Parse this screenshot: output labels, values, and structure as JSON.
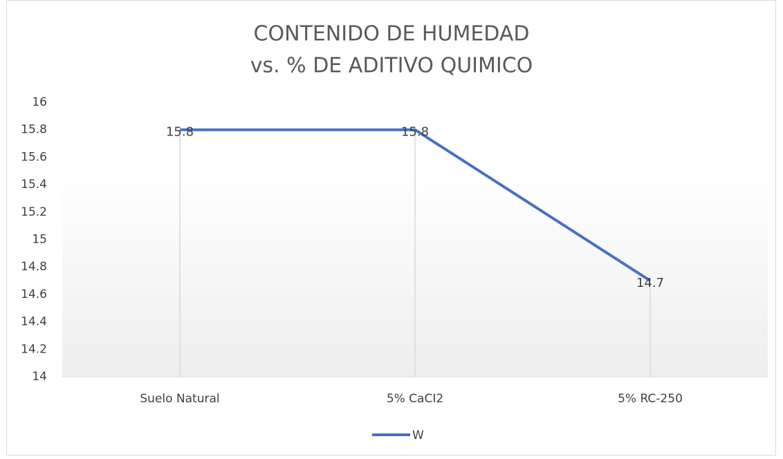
{
  "chart_data": {
    "type": "line",
    "title": [
      "CONTENIDO DE HUMEDAD",
      "vs. % DE ADITIVO QUIMICO"
    ],
    "categories": [
      "Suelo Natural",
      "5% CaCI2",
      "5% RC-250"
    ],
    "series": [
      {
        "name": "W",
        "color": "#4472c4",
        "values": [
          15.8,
          15.8,
          14.7
        ]
      }
    ],
    "ylim": [
      14,
      16
    ],
    "yticks": [
      14,
      14.2,
      14.4,
      14.6,
      14.8,
      15,
      15.2,
      15.4,
      15.6,
      15.8,
      16
    ],
    "drop_lines": true,
    "data_labels": true,
    "legend": "bottom"
  }
}
